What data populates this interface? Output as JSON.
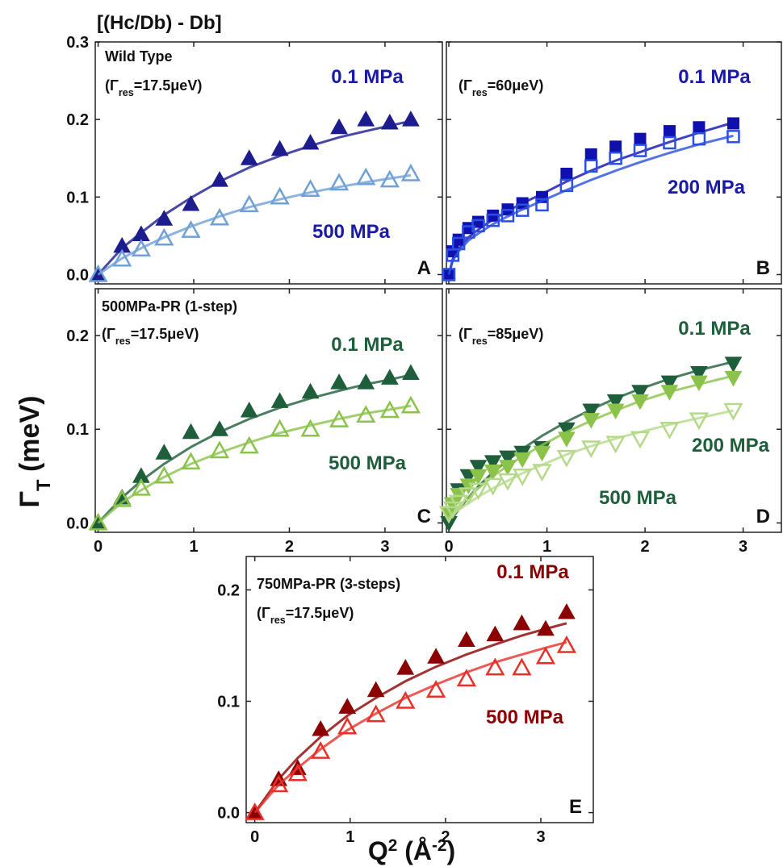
{
  "figure": {
    "title": "[(Hc/Db) - Db]",
    "y_label": [
      "Γ",
      "T",
      " (meV)"
    ],
    "x_label": [
      "Q",
      "2",
      " (Å",
      "-2",
      ")"
    ]
  },
  "chart_data": [
    {
      "type": "scatter",
      "label": "A",
      "title": "Wild Type",
      "note": [
        "(Γ",
        "res",
        "=17.5μeV)"
      ],
      "x": [
        0,
        0.25,
        0.45,
        0.69,
        0.97,
        1.27,
        1.58,
        1.9,
        2.22,
        2.52,
        2.8,
        3.05,
        3.27
      ],
      "xlim": [
        -0.03,
        3.6
      ],
      "ylim": [
        -0.012,
        0.3
      ],
      "xticks": [
        0,
        1,
        2,
        3
      ],
      "yticks": [
        {
          "value": 0,
          "label": "0.0"
        },
        0.1,
        0.2,
        0.3
      ],
      "xtick_labels": false,
      "ytick_labels": true,
      "series": [
        {
          "name": "0.1 MPa",
          "color": "#1c1c8e",
          "label_color": "#1a1aa8",
          "marker": "triangle-up",
          "filled": true,
          "values": [
            0,
            0.037,
            0.052,
            0.072,
            0.091,
            0.122,
            0.15,
            0.162,
            0.17,
            0.19,
            0.2,
            0.196,
            0.2
          ],
          "fit": [
            0,
            0.034,
            0.054,
            0.077,
            0.099,
            0.12,
            0.138,
            0.153,
            0.166,
            0.177,
            0.185,
            0.192,
            0.198
          ]
        },
        {
          "name": "500 MPa",
          "color": "#6fa0d6",
          "label_color": "#1a1aa8",
          "marker": "triangle-up",
          "filled": false,
          "values": [
            0,
            0.02,
            0.033,
            0.047,
            0.057,
            0.073,
            0.09,
            0.1,
            0.11,
            0.118,
            0.125,
            0.122,
            0.13
          ],
          "fit": [
            0,
            0.021,
            0.034,
            0.048,
            0.062,
            0.075,
            0.087,
            0.097,
            0.106,
            0.113,
            0.119,
            0.124,
            0.128
          ]
        }
      ]
    },
    {
      "type": "scatter",
      "label": "B",
      "note": [
        "(Γ",
        "res",
        "=60μeV)"
      ],
      "x": [
        0,
        0.04,
        0.1,
        0.2,
        0.3,
        0.45,
        0.6,
        0.75,
        0.95,
        1.2,
        1.45,
        1.7,
        1.95,
        2.25,
        2.55,
        2.9
      ],
      "xlim": [
        -0.025,
        3.39
      ],
      "ylim": [
        -0.012,
        0.3
      ],
      "xticks": [
        0,
        1,
        2,
        3
      ],
      "yticks": [
        {
          "value": 0,
          "label": "0.0"
        },
        0.1,
        0.2,
        0.3
      ],
      "xtick_labels": false,
      "ytick_labels": false,
      "series": [
        {
          "name": "0.1 MPa",
          "color": "#1010b0",
          "label_color": "#1a1aa8",
          "marker": "square",
          "filled": true,
          "values": [
            0,
            0.03,
            0.045,
            0.06,
            0.068,
            0.076,
            0.084,
            0.092,
            0.1,
            0.13,
            0.155,
            0.165,
            0.175,
            0.185,
            0.19,
            0.195
          ],
          "fit": [
            0,
            0.02,
            0.033,
            0.048,
            0.058,
            0.071,
            0.082,
            0.092,
            0.104,
            0.12,
            0.134,
            0.147,
            0.158,
            0.171,
            0.183,
            0.196
          ]
        },
        {
          "name": "200 MPa",
          "color": "#2a50e0",
          "label_color": "#1a1aa8",
          "marker": "square",
          "filled": false,
          "values": [
            0,
            0.025,
            0.04,
            0.055,
            0.063,
            0.07,
            0.076,
            0.083,
            0.09,
            0.115,
            0.14,
            0.15,
            0.16,
            0.17,
            0.175,
            0.178
          ],
          "fit": [
            0,
            0.018,
            0.03,
            0.044,
            0.053,
            0.065,
            0.075,
            0.084,
            0.095,
            0.109,
            0.122,
            0.134,
            0.145,
            0.157,
            0.168,
            0.179
          ]
        }
      ]
    },
    {
      "type": "scatter",
      "label": "C",
      "title": "500MPa-PR (1-step)",
      "note": [
        "(Γ",
        "res",
        "=17.5μeV)"
      ],
      "x": [
        0,
        0.25,
        0.45,
        0.69,
        0.97,
        1.27,
        1.58,
        1.9,
        2.22,
        2.52,
        2.8,
        3.05,
        3.27
      ],
      "xlim": [
        -0.03,
        3.6
      ],
      "ylim": [
        -0.01,
        0.25
      ],
      "xticks": [
        0,
        1,
        2,
        3
      ],
      "yticks": [
        {
          "value": 0,
          "label": "0.0"
        },
        0.1,
        0.2
      ],
      "xtick_labels": true,
      "ytick_labels": true,
      "series": [
        {
          "name": "0.1 MPa",
          "color": "#1e5e3a",
          "label_color": "#1e5e3a",
          "marker": "triangle-up",
          "filled": true,
          "values": [
            0,
            0.027,
            0.05,
            0.075,
            0.097,
            0.1,
            0.12,
            0.13,
            0.14,
            0.15,
            0.15,
            0.155,
            0.16
          ],
          "fit": [
            0,
            0.027,
            0.045,
            0.063,
            0.081,
            0.097,
            0.111,
            0.123,
            0.133,
            0.141,
            0.148,
            0.153,
            0.158
          ]
        },
        {
          "name": "500 MPa",
          "color": "#8bc34a",
          "label_color": "#1e5e3a",
          "marker": "triangle-up",
          "filled": false,
          "values": [
            0,
            0.025,
            0.037,
            0.05,
            0.065,
            0.077,
            0.082,
            0.1,
            0.1,
            0.11,
            0.115,
            0.12,
            0.125
          ],
          "fit": [
            0,
            0.022,
            0.035,
            0.049,
            0.063,
            0.075,
            0.086,
            0.096,
            0.104,
            0.111,
            0.117,
            0.121,
            0.125
          ]
        }
      ]
    },
    {
      "type": "scatter",
      "label": "D",
      "note": [
        "(Γ",
        "res",
        "=85μeV)"
      ],
      "x": [
        0,
        0.04,
        0.1,
        0.2,
        0.3,
        0.45,
        0.6,
        0.75,
        0.95,
        1.2,
        1.45,
        1.7,
        1.95,
        2.25,
        2.55,
        2.9
      ],
      "xlim": [
        -0.025,
        3.39
      ],
      "ylim": [
        -0.01,
        0.25
      ],
      "xticks": [
        0,
        1,
        2,
        3
      ],
      "yticks": [
        {
          "value": 0,
          "label": "0.0"
        },
        0.1,
        0.2
      ],
      "xtick_labels": true,
      "ytick_labels": false,
      "series": [
        {
          "name": "0.1 MPa",
          "color": "#1e5e3a",
          "label_color": "#1e5e3a",
          "marker": "triangle-down",
          "filled": true,
          "values": [
            0,
            0.02,
            0.035,
            0.05,
            0.06,
            0.065,
            0.07,
            0.075,
            0.08,
            0.1,
            0.12,
            0.13,
            0.14,
            0.15,
            0.16,
            0.17
          ],
          "fit": [
            0,
            0.006,
            0.014,
            0.027,
            0.039,
            0.054,
            0.067,
            0.079,
            0.093,
            0.108,
            0.121,
            0.133,
            0.143,
            0.154,
            0.163,
            0.172
          ]
        },
        {
          "name": "200 MPa",
          "color": "#8bc34a",
          "label_color": "#1e5e3a",
          "marker": "triangle-down",
          "filled": true,
          "values": [
            0.01,
            0.02,
            0.03,
            0.04,
            0.05,
            0.055,
            0.06,
            0.068,
            0.075,
            0.09,
            0.11,
            0.12,
            0.13,
            0.14,
            0.15,
            0.155
          ],
          "fit": [
            0.004,
            0.009,
            0.016,
            0.027,
            0.037,
            0.05,
            0.061,
            0.071,
            0.083,
            0.097,
            0.109,
            0.12,
            0.13,
            0.14,
            0.148,
            0.157
          ]
        },
        {
          "name": "500 MPa",
          "color": "#b5d98a",
          "label_color": "#1e5e3a",
          "marker": "triangle-down",
          "filled": false,
          "values": [
            0.01,
            0.015,
            0.022,
            0.03,
            0.035,
            0.04,
            0.045,
            0.05,
            0.055,
            0.07,
            0.08,
            0.085,
            0.09,
            0.1,
            0.11,
            0.12
          ],
          "fit": [
            0.005,
            0.009,
            0.014,
            0.021,
            0.028,
            0.037,
            0.045,
            0.053,
            0.062,
            0.073,
            0.082,
            0.09,
            0.097,
            0.105,
            0.112,
            0.12
          ]
        }
      ]
    },
    {
      "type": "scatter",
      "label": "E",
      "title": "750MPa-PR (3-steps)",
      "note": [
        "(Γ",
        "res",
        "=17.5μeV)"
      ],
      "x": [
        0,
        0.25,
        0.45,
        0.69,
        0.97,
        1.27,
        1.58,
        1.9,
        2.22,
        2.52,
        2.8,
        3.05,
        3.27
      ],
      "xlim": [
        -0.09,
        3.55
      ],
      "ylim": [
        -0.009,
        0.23
      ],
      "xticks": [
        0,
        1,
        2,
        3
      ],
      "yticks": [
        {
          "value": 0,
          "label": "0.0"
        },
        0.1,
        0.2
      ],
      "xtick_labels": true,
      "ytick_labels": true,
      "series": [
        {
          "name": "0.1 MPa",
          "color": "#8b0000",
          "label_color": "#8b0000",
          "marker": "triangle-up",
          "filled": true,
          "values": [
            0,
            0.03,
            0.04,
            0.075,
            0.095,
            0.11,
            0.13,
            0.14,
            0.155,
            0.16,
            0.17,
            0.165,
            0.18
          ],
          "fit": [
            0,
            0.03,
            0.049,
            0.068,
            0.087,
            0.103,
            0.118,
            0.131,
            0.142,
            0.151,
            0.159,
            0.165,
            0.17
          ]
        },
        {
          "name": "500 MPa",
          "color": "#e8302a",
          "label_color": "#8b0000",
          "marker": "triangle-up",
          "filled": false,
          "values": [
            0,
            0.025,
            0.035,
            0.055,
            0.077,
            0.088,
            0.1,
            0.11,
            0.12,
            0.13,
            0.13,
            0.14,
            0.15
          ],
          "fit": [
            0,
            0.025,
            0.04,
            0.057,
            0.074,
            0.089,
            0.103,
            0.115,
            0.126,
            0.135,
            0.142,
            0.148,
            0.153
          ]
        }
      ]
    }
  ]
}
